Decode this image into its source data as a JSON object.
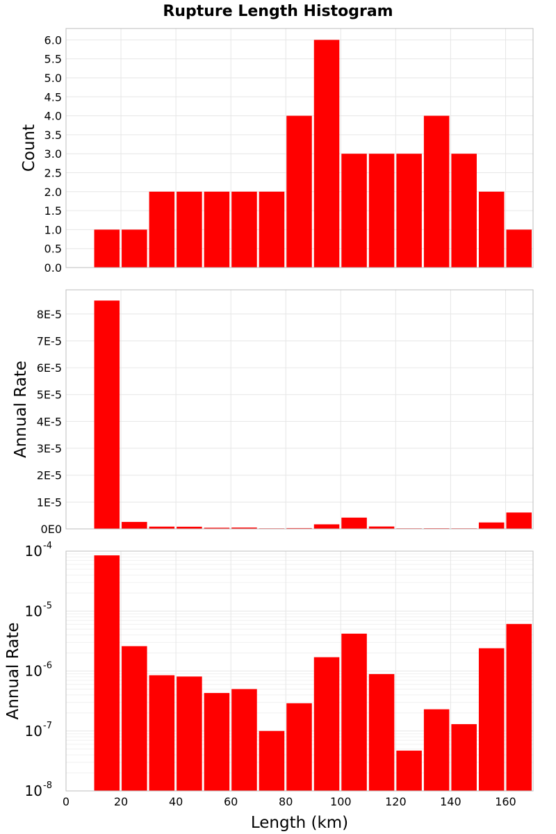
{
  "chart_title": "Rupture Length Histogram",
  "colors": {
    "bar": "#ff0000",
    "grid": "#e6e6e6",
    "frame": "#bdbdbd"
  },
  "chart_data": [
    {
      "type": "bar",
      "title": "Rupture Length Histogram",
      "ylabel": "Count",
      "xlim": [
        0,
        170
      ],
      "bin_width": 10,
      "x": [
        15,
        25,
        35,
        45,
        55,
        65,
        75,
        85,
        95,
        105,
        115,
        125,
        135,
        145,
        155,
        165
      ],
      "values": [
        1,
        1,
        2,
        2,
        2,
        2,
        2,
        4,
        6,
        3,
        3,
        3,
        4,
        3,
        2,
        1
      ],
      "ylim": [
        0,
        6.3
      ],
      "yticks": [
        0.0,
        0.5,
        1.0,
        1.5,
        2.0,
        2.5,
        3.0,
        3.5,
        4.0,
        4.5,
        5.0,
        5.5,
        6.0
      ],
      "ytick_labels": [
        "0.0",
        "0.5",
        "1.0",
        "1.5",
        "2.0",
        "2.5",
        "3.0",
        "3.5",
        "4.0",
        "4.5",
        "5.0",
        "5.5",
        "6.0"
      ]
    },
    {
      "type": "bar",
      "ylabel": "Annual Rate",
      "xlim": [
        0,
        170
      ],
      "bin_width": 10,
      "x": [
        15,
        25,
        35,
        45,
        55,
        65,
        75,
        85,
        95,
        105,
        115,
        125,
        135,
        145,
        155,
        165
      ],
      "values": [
        8.5e-05,
        2.6e-06,
        8.5e-07,
        8.1e-07,
        4.3e-07,
        5e-07,
        1e-07,
        2.9e-07,
        1.7e-06,
        4.2e-06,
        8.9e-07,
        4.7e-08,
        2.3e-07,
        1.3e-07,
        2.4e-06,
        6.1e-06
      ],
      "ylim": [
        0,
        8.9e-05
      ],
      "yticks": [
        0,
        1e-05,
        2e-05,
        3e-05,
        4e-05,
        5e-05,
        6e-05,
        7e-05,
        8e-05
      ],
      "ytick_labels": [
        "0E0",
        "1E-5",
        "2E-5",
        "3E-5",
        "4E-5",
        "5E-5",
        "6E-5",
        "7E-5",
        "8E-5"
      ]
    },
    {
      "type": "bar",
      "scale": "log",
      "ylabel": "Annual Rate",
      "xlabel": "Length (km)",
      "xlim": [
        0,
        170
      ],
      "bin_width": 10,
      "x": [
        15,
        25,
        35,
        45,
        55,
        65,
        75,
        85,
        95,
        105,
        115,
        125,
        135,
        145,
        155,
        165
      ],
      "values": [
        8.5e-05,
        2.6e-06,
        8.5e-07,
        8.1e-07,
        4.3e-07,
        5e-07,
        1e-07,
        2.9e-07,
        1.7e-06,
        4.2e-06,
        8.9e-07,
        4.7e-08,
        2.3e-07,
        1.3e-07,
        2.4e-06,
        6.1e-06
      ],
      "ylim_exp": [
        -8,
        -4
      ],
      "ytick_exps": [
        -8,
        -7,
        -6,
        -5,
        -4
      ],
      "ytick_bases": [
        "10",
        "10",
        "10",
        "10",
        "10"
      ],
      "ytick_sups": [
        "-8",
        "-7",
        "-6",
        "-5",
        "-4"
      ],
      "xticks": [
        0,
        20,
        40,
        60,
        80,
        100,
        120,
        140,
        160
      ],
      "xtick_labels": [
        "0",
        "20",
        "40",
        "60",
        "80",
        "100",
        "120",
        "140",
        "160"
      ]
    }
  ]
}
